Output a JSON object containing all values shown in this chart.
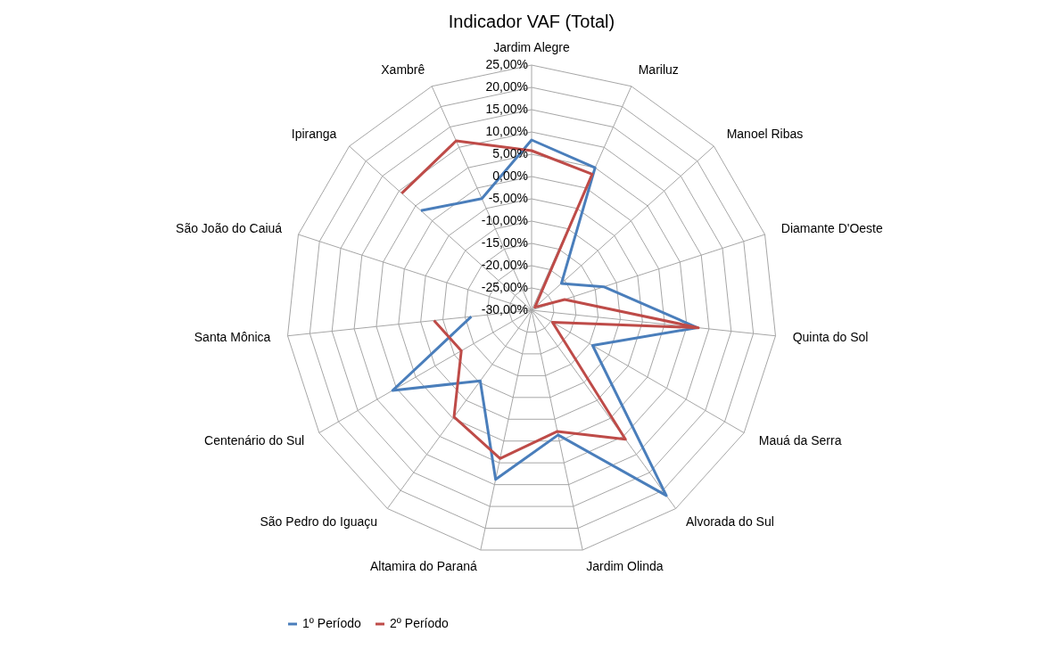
{
  "chart_data": {
    "type": "radar",
    "title": "Indicador VAF (Total)",
    "categories": [
      "Jardim Alegre",
      "Mariluz",
      "Manoel Ribas",
      "Diamante D'Oeste",
      "Quinta do Sol",
      "Mauá da Serra",
      "Alvorada do Sul",
      "Jardim Olinda",
      "Altamira do Paraná",
      "São Pedro do Iguaçu",
      "Centenário do Sul",
      "Santa Mônica",
      "São João do Caiuá",
      "Ipiranga",
      "Xambrê"
    ],
    "series": [
      {
        "name": "1º Período",
        "color": "#4a7ebb",
        "values": [
          8.2,
          5.0,
          -21.0,
          -13.0,
          7.4,
          -14.2,
          21.4,
          -1.4,
          8.8,
          -10.4,
          6.0,
          -16.4,
          null,
          3.4,
          -2.6
        ]
      },
      {
        "name": "2º Período",
        "color": "#be4b48",
        "values": [
          5.8,
          3.4,
          -29.0,
          -22.2,
          7.6,
          -24.6,
          5.8,
          -2.2,
          4.0,
          -0.4,
          -11.8,
          -8.0,
          null,
          9.2,
          11.6
        ]
      }
    ],
    "ylim": [
      -30,
      25
    ],
    "yticks": [
      {
        "value": -30,
        "label": "-30,00%"
      },
      {
        "value": -25,
        "label": "-25,00%"
      },
      {
        "value": -20,
        "label": "-20,00%"
      },
      {
        "value": -15,
        "label": "-15,00%"
      },
      {
        "value": -10,
        "label": "-10,00%"
      },
      {
        "value": -5,
        "label": "-5,00%"
      },
      {
        "value": 0,
        "label": "0,00%"
      },
      {
        "value": 5,
        "label": "5,00%"
      },
      {
        "value": 10,
        "label": "10,00%"
      },
      {
        "value": 15,
        "label": "15,00%"
      },
      {
        "value": 20,
        "label": "20,00%"
      },
      {
        "value": 25,
        "label": "25,00%"
      }
    ],
    "grid": true,
    "legend": "bottom"
  }
}
